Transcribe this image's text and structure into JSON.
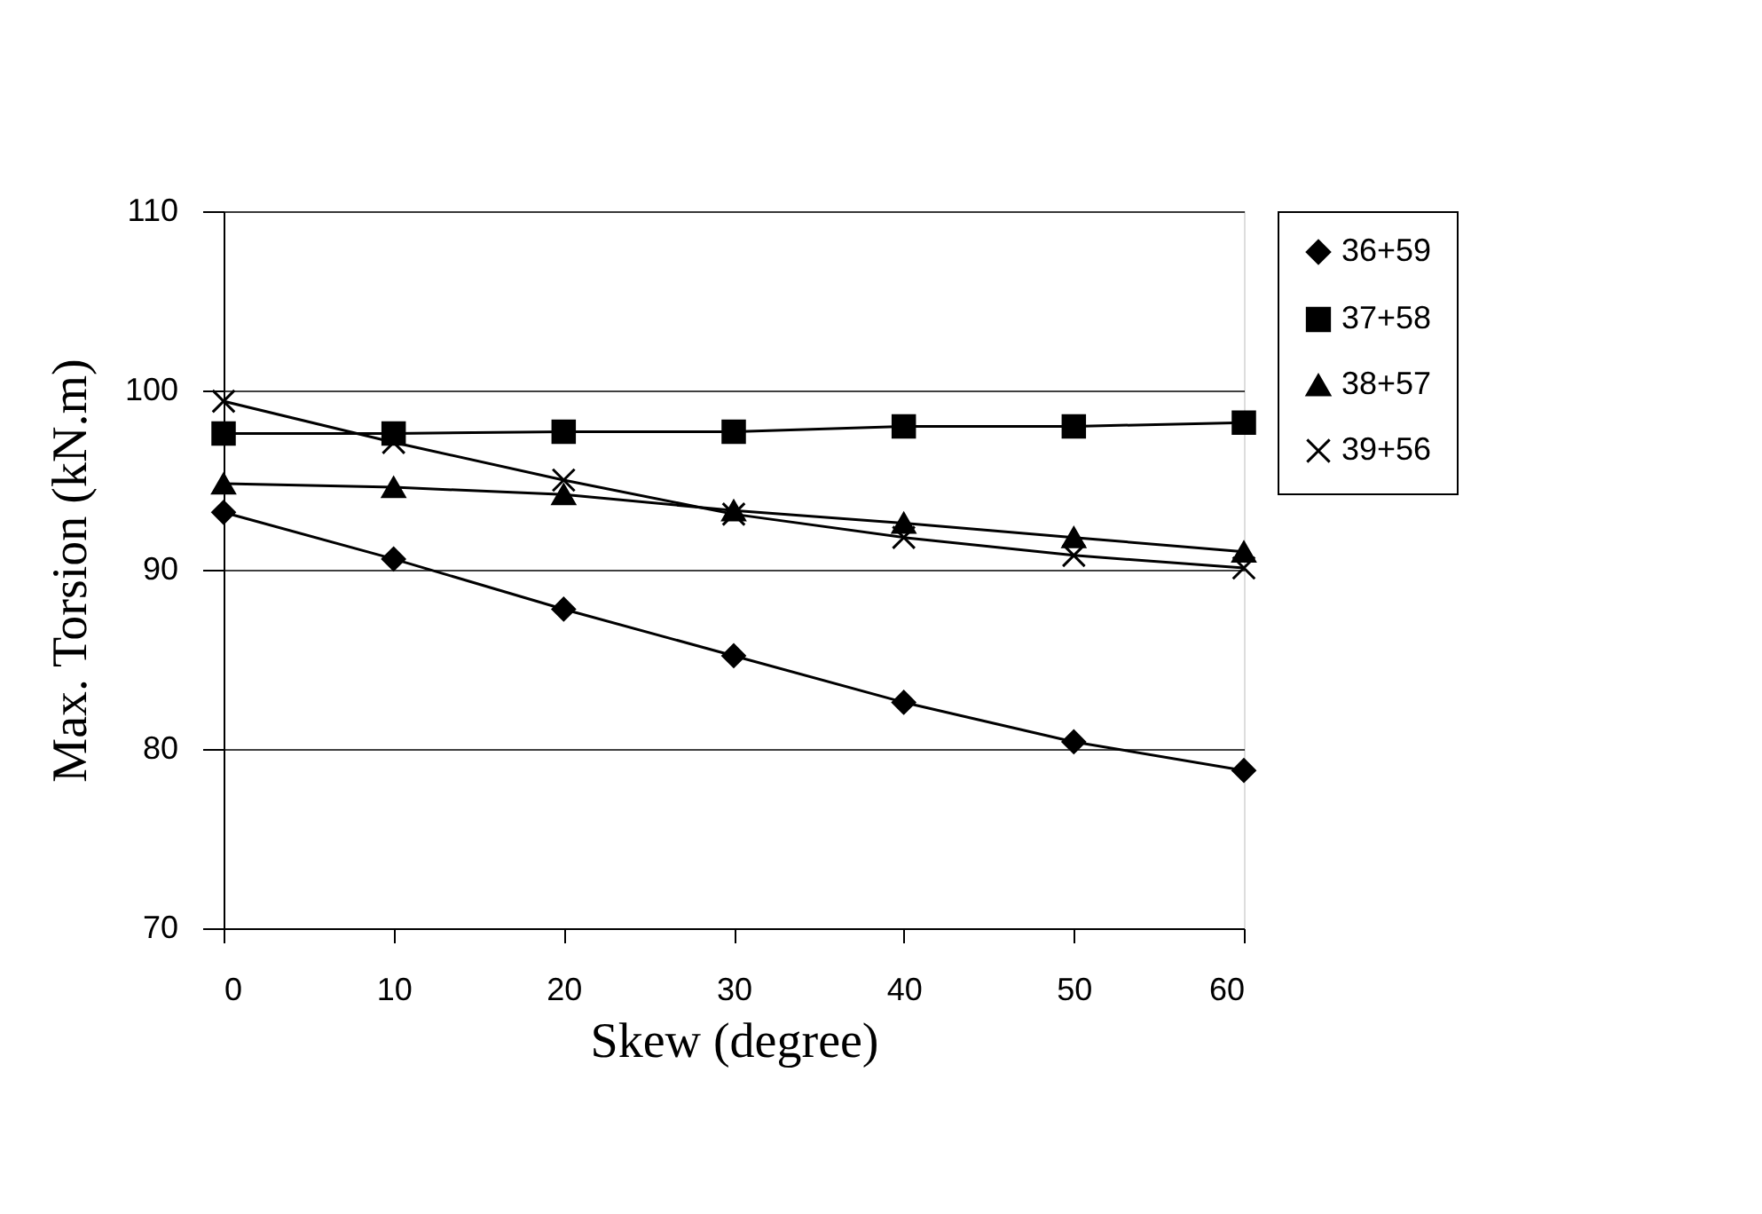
{
  "chart_data": {
    "type": "line",
    "xlabel": "Skew (degree)",
    "ylabel": "Max. Torsion  (kN.m)",
    "x": [
      0,
      10,
      20,
      30,
      40,
      50,
      60
    ],
    "xlim": [
      0,
      60
    ],
    "xticks": [
      0,
      10,
      20,
      30,
      40,
      50,
      60
    ],
    "ylim": [
      70,
      110
    ],
    "yticks": [
      70,
      80,
      90,
      100,
      110
    ],
    "grid": "y",
    "legend": "right",
    "series": [
      {
        "name": "36+59",
        "color": "#000000",
        "marker": "diamond",
        "values": [
          93.2,
          90.6,
          87.8,
          85.2,
          82.6,
          80.4,
          78.8
        ]
      },
      {
        "name": "37+58",
        "color": "#000000",
        "marker": "square",
        "values": [
          97.6,
          97.6,
          97.7,
          97.7,
          98.0,
          98.0,
          98.2
        ]
      },
      {
        "name": "38+57",
        "color": "#000000",
        "marker": "triangle",
        "values": [
          94.8,
          94.6,
          94.2,
          93.3,
          92.6,
          91.8,
          91.0
        ]
      },
      {
        "name": "39+56",
        "color": "#000000",
        "marker": "cross",
        "values": [
          99.4,
          97.1,
          95.0,
          93.1,
          91.8,
          90.8,
          90.1
        ]
      }
    ]
  }
}
